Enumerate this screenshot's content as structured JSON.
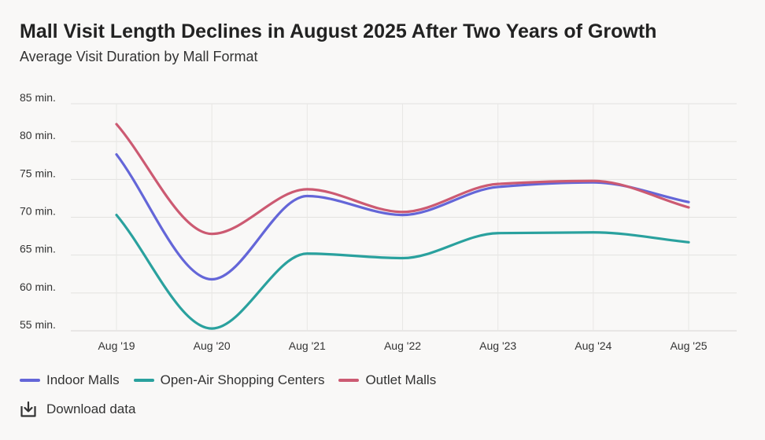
{
  "header": {
    "title": "Mall Visit Length Declines in August 2025 After Two Years of Growth",
    "subtitle": "Average Visit Duration by Mall Format"
  },
  "chart_data": {
    "type": "line",
    "title": "Mall Visit Length Declines in August 2025 After Two Years of Growth",
    "subtitle": "Average Visit Duration by Mall Format",
    "categories": [
      "Aug '19",
      "Aug '20",
      "Aug '21",
      "Aug '22",
      "Aug '23",
      "Aug '24",
      "Aug '25"
    ],
    "ylim": [
      55,
      85
    ],
    "yticks": [
      {
        "value": 85,
        "label": "85 min."
      },
      {
        "value": 80,
        "label": "80 min."
      },
      {
        "value": 75,
        "label": "75 min."
      },
      {
        "value": 70,
        "label": "70 min."
      },
      {
        "value": 65,
        "label": "65 min."
      },
      {
        "value": 60,
        "label": "60 min."
      },
      {
        "value": 55,
        "label": "55 min."
      }
    ],
    "xlabel": "",
    "ylabel": "",
    "grid": true,
    "legend_position": "bottom-left",
    "series": [
      {
        "name": "Indoor Malls",
        "color": "#6466d8",
        "values": [
          78.3,
          61.8,
          72.8,
          70.3,
          74.0,
          74.6,
          72.0
        ]
      },
      {
        "name": "Open-Air Shopping Centers",
        "color": "#2aa19e",
        "values": [
          70.3,
          55.3,
          65.2,
          64.6,
          67.9,
          68.0,
          66.7
        ]
      },
      {
        "name": "Outlet Malls",
        "color": "#cc5a72",
        "values": [
          82.3,
          67.8,
          73.7,
          70.7,
          74.4,
          74.8,
          71.3
        ]
      }
    ]
  },
  "download": {
    "label": "Download data",
    "icon": "download-icon"
  }
}
